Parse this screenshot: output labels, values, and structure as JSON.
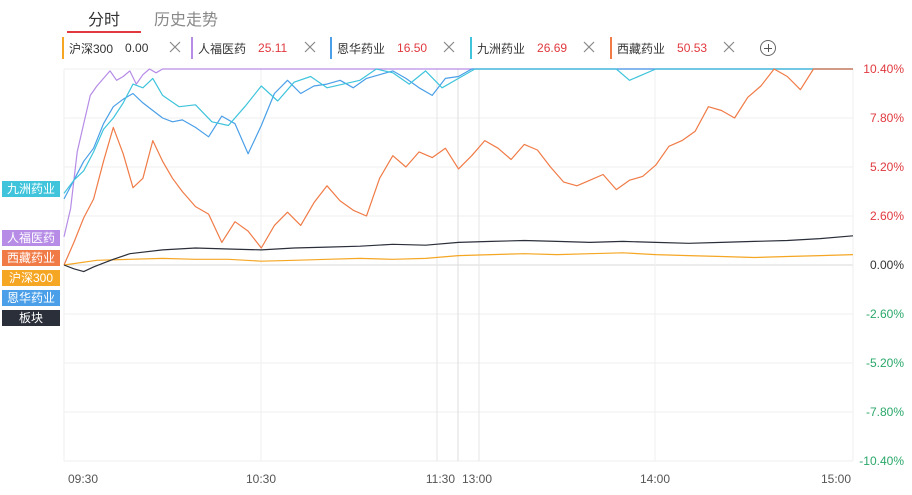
{
  "tabs": [
    {
      "label": "分时",
      "active": true
    },
    {
      "label": "历史走势",
      "active": false
    }
  ],
  "legend": [
    {
      "name": "沪深300",
      "value": "0.00",
      "color": "#f5a623"
    },
    {
      "name": "人福医药",
      "value": "25.11",
      "color": "#b68ce6"
    },
    {
      "name": "恩华药业",
      "value": "16.50",
      "color": "#4a9fe8"
    },
    {
      "name": "九洲药业",
      "value": "26.69",
      "color": "#3fc4dc"
    },
    {
      "name": "西藏药业",
      "value": "50.53",
      "color": "#f07b47"
    }
  ],
  "side_tags": [
    {
      "label": "九洲药业",
      "color": "#3fc4dc"
    },
    {
      "label": "人福医药",
      "color": "#b68ce6"
    },
    {
      "label": "西藏药业",
      "color": "#f07b47"
    },
    {
      "label": "沪深300",
      "color": "#f5a623"
    },
    {
      "label": "恩华药业",
      "color": "#4a9fe8"
    },
    {
      "label": "板块",
      "color": "#2b2f3a"
    }
  ],
  "chart_data": {
    "type": "line",
    "x_ticks": [
      "09:30",
      "10:30",
      "11:30",
      "13:00",
      "14:00",
      "15:00"
    ],
    "y_ticks": [
      "10.40%",
      "7.80%",
      "5.20%",
      "2.60%",
      "0.00%",
      "-2.60%",
      "-5.20%",
      "-7.80%",
      "-10.40%"
    ],
    "y_tick_colors": [
      "#e0393e",
      "#e0393e",
      "#e0393e",
      "#e0393e",
      "#333333",
      "#2aa86a",
      "#2aa86a",
      "#2aa86a",
      "#2aa86a"
    ],
    "ylim": [
      -10.4,
      10.4
    ],
    "x_range": [
      0,
      240
    ],
    "grid": true,
    "series": [
      {
        "name": "人福医药",
        "color": "#b68ce6",
        "x": [
          0,
          2,
          4,
          6,
          8,
          10,
          12,
          14,
          16,
          18,
          20,
          22,
          24,
          26,
          28,
          30,
          240
        ],
        "y": [
          1.5,
          3.0,
          6.0,
          7.5,
          9.0,
          9.5,
          9.9,
          10.3,
          9.8,
          10.0,
          10.3,
          9.6,
          10.1,
          10.4,
          10.2,
          10.4,
          10.4
        ]
      },
      {
        "name": "恩华药业",
        "color": "#4a9fe8",
        "x": [
          0,
          3,
          6,
          9,
          12,
          15,
          18,
          21,
          24,
          27,
          30,
          33,
          36,
          40,
          44,
          48,
          52,
          56,
          60,
          64,
          68,
          72,
          76,
          80,
          84,
          88,
          92,
          96,
          100,
          104,
          108,
          112,
          116,
          120,
          124,
          128,
          132,
          136,
          140,
          150,
          160,
          170,
          180,
          190,
          200,
          210,
          220,
          230,
          240
        ],
        "y": [
          3.5,
          4.5,
          5.5,
          6.2,
          7.5,
          8.4,
          8.8,
          9.1,
          8.6,
          8.2,
          7.8,
          7.6,
          7.7,
          7.3,
          6.8,
          7.9,
          7.5,
          5.9,
          7.4,
          9.1,
          9.8,
          9.1,
          9.5,
          9.6,
          9.8,
          9.4,
          9.9,
          10.1,
          10.3,
          9.9,
          9.4,
          9.0,
          9.9,
          10.0,
          10.4,
          10.4,
          10.4,
          10.4,
          10.4,
          10.4,
          10.4,
          10.4,
          10.4,
          10.4,
          10.4,
          10.4,
          10.4,
          10.4,
          10.4
        ]
      },
      {
        "name": "九洲药业",
        "color": "#3fc4dc",
        "x": [
          0,
          3,
          6,
          9,
          12,
          15,
          18,
          21,
          24,
          27,
          30,
          35,
          40,
          45,
          50,
          55,
          60,
          65,
          70,
          75,
          80,
          85,
          90,
          95,
          100,
          105,
          110,
          115,
          120,
          125,
          130,
          140,
          150,
          160,
          168,
          172,
          176,
          180,
          190,
          200,
          210,
          220,
          230,
          240
        ],
        "y": [
          3.8,
          4.5,
          5.0,
          6.0,
          7.2,
          7.8,
          8.6,
          9.6,
          9.4,
          9.9,
          9.0,
          8.4,
          8.5,
          7.6,
          7.4,
          8.4,
          9.5,
          8.7,
          9.7,
          10.0,
          9.4,
          9.6,
          9.8,
          10.4,
          10.2,
          9.6,
          10.3,
          9.4,
          9.9,
          10.4,
          10.4,
          10.4,
          10.4,
          10.4,
          10.4,
          9.8,
          10.1,
          10.4,
          10.4,
          10.4,
          10.4,
          10.4,
          10.4,
          10.4
        ]
      },
      {
        "name": "西藏药业",
        "color": "#f07b47",
        "x": [
          0,
          3,
          6,
          9,
          12,
          15,
          18,
          21,
          24,
          27,
          30,
          33,
          36,
          40,
          44,
          48,
          52,
          56,
          60,
          64,
          68,
          72,
          76,
          80,
          84,
          88,
          92,
          96,
          100,
          104,
          108,
          112,
          116,
          120,
          124,
          128,
          132,
          136,
          140,
          144,
          148,
          152,
          156,
          160,
          164,
          168,
          172,
          176,
          180,
          184,
          188,
          192,
          196,
          200,
          204,
          208,
          212,
          216,
          220,
          224,
          228,
          232,
          236,
          240
        ],
        "y": [
          0.0,
          1.2,
          2.5,
          3.5,
          5.5,
          7.3,
          5.9,
          4.1,
          4.6,
          6.6,
          5.5,
          4.6,
          3.9,
          3.1,
          2.7,
          1.2,
          2.3,
          1.8,
          0.9,
          2.1,
          2.8,
          2.1,
          3.3,
          4.2,
          3.4,
          2.9,
          2.6,
          4.6,
          5.8,
          5.2,
          6.0,
          5.7,
          6.2,
          5.1,
          5.8,
          6.6,
          6.2,
          5.6,
          6.4,
          6.1,
          5.2,
          4.4,
          4.2,
          4.5,
          4.8,
          4.0,
          4.5,
          4.7,
          5.3,
          6.3,
          6.6,
          7.1,
          8.4,
          8.2,
          7.8,
          8.9,
          9.5,
          10.4,
          10.0,
          9.3,
          10.4,
          10.4,
          10.4,
          10.4
        ]
      },
      {
        "name": "沪深300",
        "color": "#f5a623",
        "x": [
          0,
          10,
          20,
          30,
          40,
          50,
          60,
          70,
          80,
          90,
          100,
          110,
          120,
          130,
          140,
          150,
          160,
          170,
          180,
          190,
          200,
          210,
          220,
          230,
          240
        ],
        "y": [
          0.0,
          0.25,
          0.3,
          0.35,
          0.3,
          0.3,
          0.2,
          0.25,
          0.3,
          0.35,
          0.3,
          0.35,
          0.5,
          0.55,
          0.6,
          0.55,
          0.6,
          0.65,
          0.55,
          0.5,
          0.45,
          0.4,
          0.45,
          0.5,
          0.55
        ]
      },
      {
        "name": "板块",
        "color": "#2b2f3a",
        "x": [
          0,
          3,
          6,
          9,
          12,
          15,
          20,
          30,
          40,
          50,
          60,
          70,
          80,
          90,
          100,
          110,
          120,
          130,
          140,
          150,
          160,
          170,
          180,
          190,
          200,
          210,
          220,
          230,
          240
        ],
        "y": [
          0.0,
          -0.2,
          -0.35,
          -0.1,
          0.1,
          0.3,
          0.6,
          0.8,
          0.9,
          0.85,
          0.8,
          0.9,
          0.95,
          1.0,
          1.1,
          1.05,
          1.2,
          1.25,
          1.3,
          1.25,
          1.2,
          1.25,
          1.2,
          1.15,
          1.2,
          1.25,
          1.3,
          1.4,
          1.55
        ]
      }
    ]
  }
}
